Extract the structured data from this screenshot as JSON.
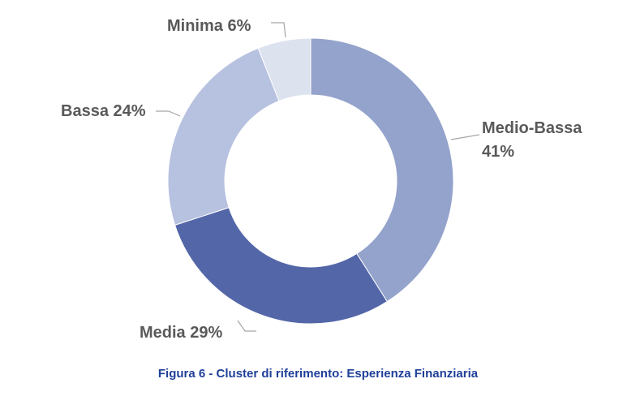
{
  "caption": "Figura 6 - Cluster di riferimento: Esperienza Finanziaria",
  "chart_data": {
    "type": "pie",
    "variant": "donut",
    "title": "",
    "categories": [
      "Medio-Bassa",
      "Media",
      "Bassa",
      "Minima"
    ],
    "values": [
      41,
      29,
      24,
      6
    ],
    "unit": "%",
    "labels": [
      "Medio-Bassa 41%",
      "Media 29%",
      "Bassa 24%",
      "Minima 6%"
    ],
    "colors": [
      "#94a3cc",
      "#5366a8",
      "#b7c1e0",
      "#dde2ef"
    ],
    "legend": "none"
  }
}
